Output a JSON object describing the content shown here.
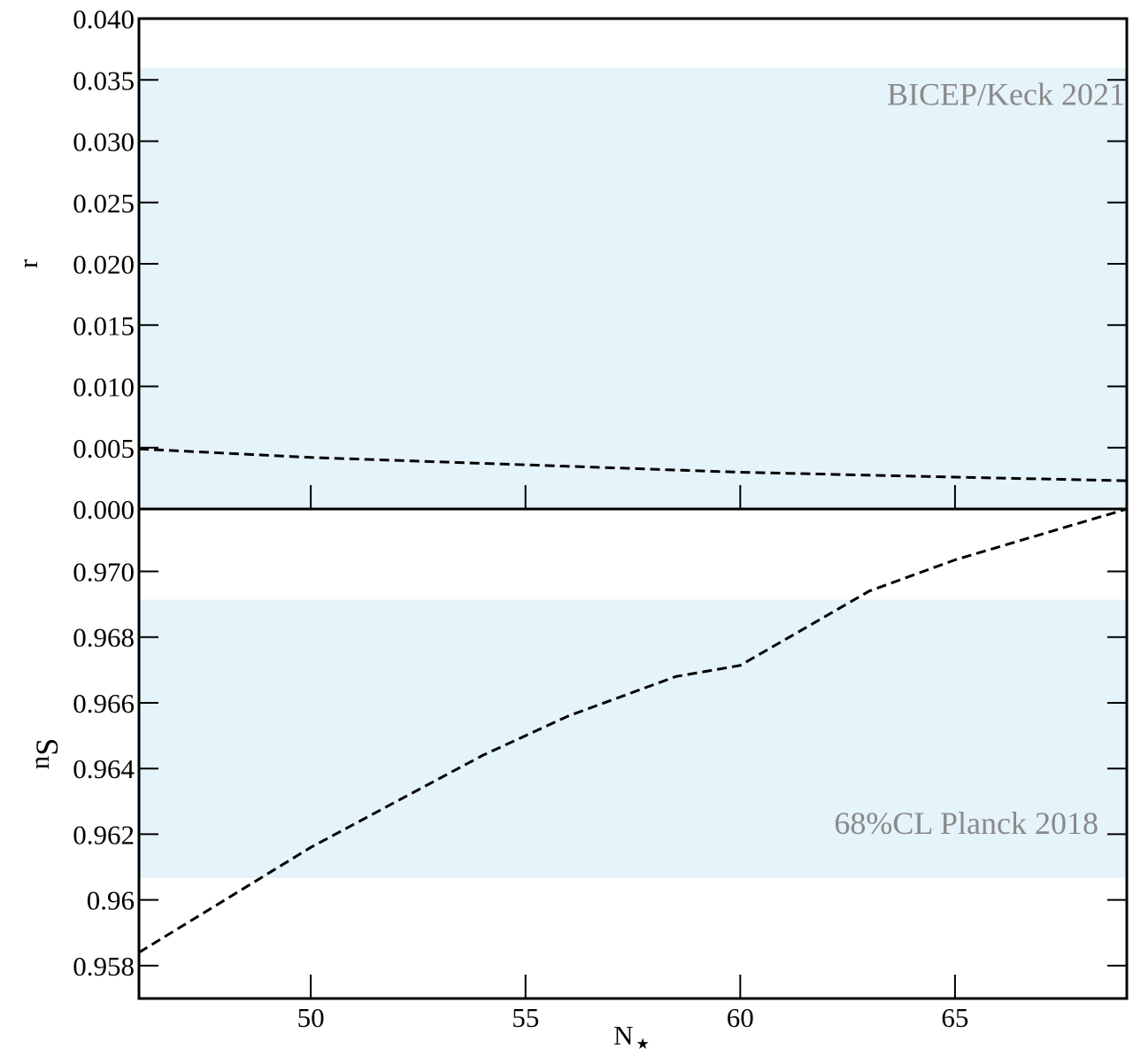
{
  "chart_data": [
    {
      "type": "line",
      "ylabel": "r",
      "ylim": [
        0,
        0.04
      ],
      "yticks": [
        {
          "value": 0,
          "label": "0.000"
        },
        {
          "value": 0.005,
          "label": "0.005"
        },
        {
          "value": 0.01,
          "label": "0.010"
        },
        {
          "value": 0.015,
          "label": "0.015"
        },
        {
          "value": 0.02,
          "label": "0.020"
        },
        {
          "value": 0.025,
          "label": "0.025"
        },
        {
          "value": 0.03,
          "label": "0.030"
        },
        {
          "value": 0.035,
          "label": "0.035"
        },
        {
          "value": 0.04,
          "label": "0.040"
        }
      ],
      "bands": [
        {
          "y": [
            0,
            0.036
          ],
          "color": "#e5f3fa",
          "label": "BICEP/Keck 2021"
        }
      ],
      "x": [
        46,
        50,
        55,
        60,
        65,
        69
      ],
      "series": [
        {
          "color": "#000000",
          "dash": true,
          "values": [
            0.0049,
            0.0042,
            0.0036,
            0.003,
            0.0026,
            0.0023
          ]
        }
      ]
    },
    {
      "type": "line",
      "xlabel": {
        "text": "N",
        "sub": "⋆"
      },
      "ylabel": {
        "text": "n",
        "sub": "S"
      },
      "xlim": [
        46,
        69
      ],
      "xticks": [
        50,
        55,
        60,
        65
      ],
      "ylim": [
        0.957,
        0.9719
      ],
      "yticks": [
        0.958,
        0.96,
        0.962,
        0.964,
        0.966,
        0.968,
        {
          "value": 0.97,
          "label": "0.970"
        }
      ],
      "bands": [
        {
          "y": [
            0.96067,
            0.96914
          ],
          "color": "#e5f3fa",
          "label": "68%CL Planck 2018"
        }
      ],
      "x": [
        46,
        48,
        50,
        52,
        54,
        56,
        58.5,
        60,
        63,
        65,
        69
      ],
      "series": [
        {
          "color": "#000000",
          "dash": true,
          "values": [
            0.9584,
            0.96,
            0.9616,
            0.963,
            0.9644,
            0.9656,
            0.9668,
            0.96714,
            0.9694,
            0.97035,
            0.9719
          ]
        }
      ]
    }
  ]
}
